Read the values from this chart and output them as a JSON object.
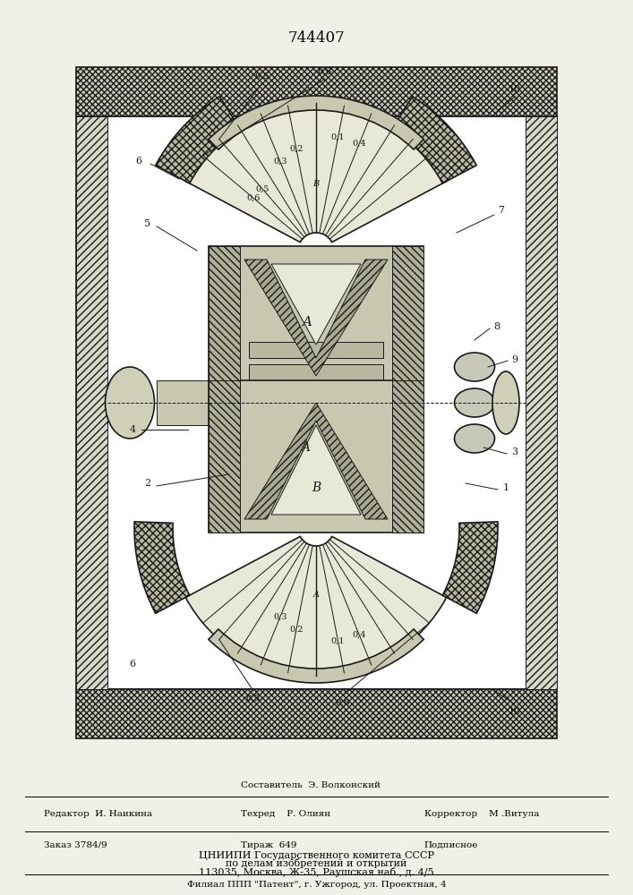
{
  "patent_number": "744407",
  "bg_color": "#f0efe8",
  "white": "#ffffff",
  "line_color": "#1a1a1a",
  "hatch_color": "#444444",
  "fill_light": "#e8e8d8",
  "fill_medium": "#c8c8b0",
  "fill_dark": "#909080",
  "wall_fill": "#d0d0c0",
  "editor_label": "Редактор  И. Наикина",
  "composer_label1": "Составитель  Э. Волконский",
  "composer_label2": "Техред    Р. Олиян",
  "corrector_label": "Корректор    М .Витула",
  "order_label": "Заказ 3784/9",
  "print_label": "Тираж  649",
  "subscription_label": "Подписное",
  "org1": "ЦНИИПИ Государственного комитета СССР",
  "org2": "по делам изобретений и открытий",
  "org3": "113035, Москва, Ж-35, Раушская наб., д. 4/5",
  "branch": "Филиал ППП \"Патент\", г. Ужгород, ул. Проектная, 4"
}
